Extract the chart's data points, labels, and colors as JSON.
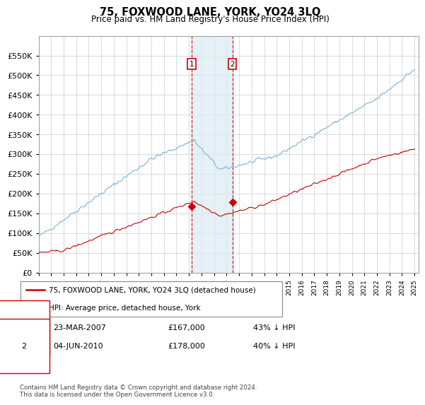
{
  "title": "75, FOXWOOD LANE, YORK, YO24 3LQ",
  "subtitle": "Price paid vs. HM Land Registry's House Price Index (HPI)",
  "footer": "Contains HM Land Registry data © Crown copyright and database right 2024.\nThis data is licensed under the Open Government Licence v3.0.",
  "legend_line1": "75, FOXWOOD LANE, YORK, YO24 3LQ (detached house)",
  "legend_line2": "HPI: Average price, detached house, York",
  "transaction1_date": "23-MAR-2007",
  "transaction1_price": "£167,000",
  "transaction1_hpi": "43% ↓ HPI",
  "transaction1_year": 2007.22,
  "transaction1_value": 167000,
  "transaction2_date": "04-JUN-2010",
  "transaction2_price": "£178,000",
  "transaction2_hpi": "40% ↓ HPI",
  "transaction2_year": 2010.46,
  "transaction2_value": 178000,
  "hpi_color": "#7ab3d4",
  "price_color": "#cc0000",
  "dashed_line_color": "#cc0000",
  "shaded_color": "#daeaf5",
  "ylim_min": 0,
  "ylim_max": 600000,
  "xlim_min": 1995.0,
  "xlim_max": 2025.3
}
